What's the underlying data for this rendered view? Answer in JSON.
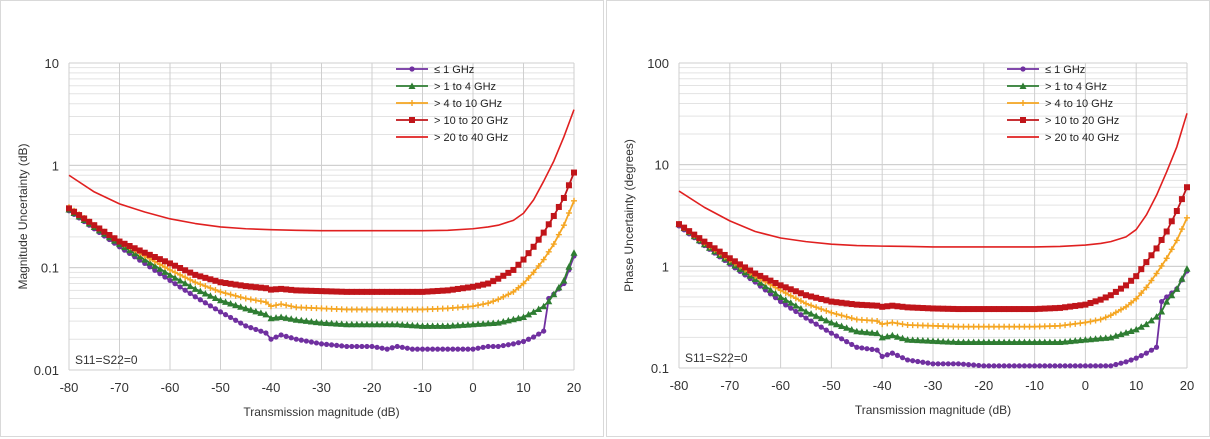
{
  "chart_data": [
    {
      "type": "line",
      "ylog": true,
      "xlabel": "Transmission magnitude (dB)",
      "ylabel": "Magnitude Uncertainty (dB)",
      "note": "S11=S22=0",
      "xlim": [
        -80,
        20
      ],
      "ylim": [
        0.01,
        10
      ],
      "xticks": [
        -80,
        -70,
        -60,
        -50,
        -40,
        -30,
        -20,
        -10,
        0,
        10,
        20
      ],
      "yticks": [
        0.01,
        0.1,
        1,
        10
      ],
      "ytick_labels": [
        "0.01",
        "0.1",
        "1",
        "10"
      ],
      "grid": true,
      "legend_position": "top-right",
      "series": [
        {
          "name": "≤ 1 GHz",
          "color": "#7030a0",
          "marker": "circle",
          "x": [
            -80,
            -75,
            -70,
            -65,
            -60,
            -55,
            -50,
            -45,
            -41,
            -40,
            -38,
            -35,
            -30,
            -25,
            -20,
            -17,
            -15,
            -12,
            -10,
            -7,
            -5,
            0,
            3,
            5,
            8,
            10,
            12,
            14,
            15,
            16,
            18,
            20
          ],
          "y": [
            0.36,
            0.24,
            0.16,
            0.11,
            0.075,
            0.052,
            0.037,
            0.027,
            0.023,
            0.02,
            0.022,
            0.02,
            0.018,
            0.017,
            0.017,
            0.016,
            0.017,
            0.016,
            0.016,
            0.016,
            0.016,
            0.016,
            0.017,
            0.017,
            0.018,
            0.019,
            0.021,
            0.024,
            0.05,
            0.055,
            0.07,
            0.13
          ]
        },
        {
          "name": "> 1 to 4 GHz",
          "color": "#2e7d32",
          "marker": "triangle",
          "x": [
            -80,
            -75,
            -70,
            -65,
            -60,
            -55,
            -50,
            -45,
            -41,
            -40,
            -38,
            -35,
            -30,
            -25,
            -20,
            -15,
            -10,
            -5,
            0,
            5,
            10,
            12,
            14,
            15,
            16,
            18,
            20
          ],
          "y": [
            0.37,
            0.25,
            0.17,
            0.12,
            0.085,
            0.062,
            0.048,
            0.04,
            0.035,
            0.032,
            0.033,
            0.031,
            0.029,
            0.028,
            0.028,
            0.028,
            0.027,
            0.027,
            0.028,
            0.029,
            0.033,
            0.037,
            0.042,
            0.047,
            0.055,
            0.075,
            0.14
          ]
        },
        {
          "name": "> 4 to 10 GHz",
          "color": "#f5a623",
          "marker": "plus",
          "x": [
            -80,
            -75,
            -70,
            -65,
            -60,
            -55,
            -50,
            -45,
            -41,
            -40,
            -38,
            -35,
            -30,
            -25,
            -20,
            -15,
            -10,
            -5,
            0,
            3,
            5,
            8,
            10,
            12,
            14,
            16,
            18,
            20
          ],
          "y": [
            0.39,
            0.26,
            0.18,
            0.13,
            0.095,
            0.072,
            0.058,
            0.05,
            0.046,
            0.042,
            0.044,
            0.041,
            0.04,
            0.039,
            0.039,
            0.039,
            0.039,
            0.04,
            0.042,
            0.045,
            0.049,
            0.058,
            0.07,
            0.09,
            0.12,
            0.17,
            0.26,
            0.45
          ]
        },
        {
          "name": "> 10 to 20 GHz",
          "color": "#c0151a",
          "marker": "square",
          "x": [
            -80,
            -75,
            -70,
            -65,
            -60,
            -55,
            -50,
            -45,
            -41,
            -40,
            -38,
            -35,
            -30,
            -25,
            -20,
            -15,
            -10,
            -5,
            0,
            3,
            5,
            8,
            10,
            12,
            14,
            16,
            18,
            20
          ],
          "y": [
            0.38,
            0.26,
            0.18,
            0.14,
            0.11,
            0.085,
            0.072,
            0.066,
            0.063,
            0.061,
            0.062,
            0.06,
            0.059,
            0.058,
            0.058,
            0.058,
            0.058,
            0.06,
            0.065,
            0.07,
            0.078,
            0.095,
            0.12,
            0.16,
            0.22,
            0.32,
            0.48,
            0.85
          ]
        },
        {
          "name": "> 20 to 40 GHz",
          "color": "#e02020",
          "marker": "none",
          "x": [
            -80,
            -75,
            -70,
            -65,
            -60,
            -55,
            -50,
            -45,
            -40,
            -35,
            -30,
            -25,
            -20,
            -15,
            -10,
            -5,
            0,
            3,
            5,
            8,
            10,
            12,
            14,
            16,
            18,
            20
          ],
          "y": [
            0.8,
            0.55,
            0.42,
            0.35,
            0.3,
            0.27,
            0.25,
            0.24,
            0.235,
            0.232,
            0.23,
            0.23,
            0.23,
            0.23,
            0.23,
            0.232,
            0.24,
            0.25,
            0.26,
            0.29,
            0.34,
            0.46,
            0.7,
            1.1,
            1.9,
            3.5
          ]
        }
      ]
    },
    {
      "type": "line",
      "ylog": true,
      "xlabel": "Transmission magnitude (dB)",
      "ylabel": "Phase Uncertainty (degrees)",
      "note": "S11=S22=0",
      "xlim": [
        -80,
        20
      ],
      "ylim": [
        0.1,
        100
      ],
      "xticks": [
        -80,
        -70,
        -60,
        -50,
        -40,
        -30,
        -20,
        -10,
        0,
        10,
        20
      ],
      "yticks": [
        0.1,
        1,
        10,
        100
      ],
      "ytick_labels": [
        "0.1",
        "1",
        "10",
        "100"
      ],
      "grid": true,
      "legend_position": "top-right",
      "series": [
        {
          "name": "≤ 1 GHz",
          "color": "#7030a0",
          "marker": "circle",
          "x": [
            -80,
            -75,
            -70,
            -65,
            -60,
            -55,
            -50,
            -45,
            -41,
            -40,
            -38,
            -35,
            -30,
            -25,
            -20,
            -15,
            -10,
            -5,
            0,
            5,
            8,
            10,
            12,
            14,
            15,
            16,
            18,
            20
          ],
          "y": [
            2.5,
            1.6,
            1.05,
            0.7,
            0.45,
            0.31,
            0.22,
            0.16,
            0.15,
            0.13,
            0.14,
            0.12,
            0.11,
            0.11,
            0.105,
            0.105,
            0.105,
            0.105,
            0.105,
            0.105,
            0.115,
            0.125,
            0.14,
            0.16,
            0.45,
            0.5,
            0.6,
            0.9
          ]
        },
        {
          "name": "> 1 to 4 GHz",
          "color": "#2e7d32",
          "marker": "triangle",
          "x": [
            -80,
            -75,
            -70,
            -65,
            -60,
            -55,
            -50,
            -45,
            -41,
            -40,
            -38,
            -35,
            -30,
            -25,
            -20,
            -15,
            -10,
            -5,
            0,
            5,
            10,
            12,
            14,
            15,
            16,
            18,
            20
          ],
          "y": [
            2.6,
            1.65,
            1.1,
            0.75,
            0.5,
            0.36,
            0.28,
            0.23,
            0.22,
            0.2,
            0.21,
            0.19,
            0.185,
            0.18,
            0.18,
            0.18,
            0.18,
            0.18,
            0.19,
            0.2,
            0.24,
            0.27,
            0.32,
            0.36,
            0.45,
            0.6,
            0.95
          ]
        },
        {
          "name": "> 4 to 10 GHz",
          "color": "#f5a623",
          "marker": "plus",
          "x": [
            -80,
            -75,
            -70,
            -65,
            -60,
            -55,
            -50,
            -45,
            -41,
            -40,
            -38,
            -35,
            -30,
            -25,
            -20,
            -15,
            -10,
            -5,
            0,
            3,
            5,
            8,
            10,
            12,
            14,
            16,
            18,
            20
          ],
          "y": [
            2.6,
            1.7,
            1.15,
            0.8,
            0.58,
            0.43,
            0.35,
            0.3,
            0.29,
            0.27,
            0.28,
            0.265,
            0.26,
            0.255,
            0.255,
            0.255,
            0.255,
            0.26,
            0.28,
            0.3,
            0.33,
            0.4,
            0.48,
            0.62,
            0.85,
            1.2,
            1.8,
            3.0
          ]
        },
        {
          "name": "> 10 to 20 GHz",
          "color": "#c0151a",
          "marker": "square",
          "x": [
            -80,
            -75,
            -70,
            -65,
            -60,
            -55,
            -50,
            -45,
            -41,
            -40,
            -38,
            -35,
            -30,
            -25,
            -20,
            -15,
            -10,
            -5,
            0,
            3,
            5,
            8,
            10,
            12,
            14,
            16,
            18,
            20
          ],
          "y": [
            2.6,
            1.75,
            1.2,
            0.85,
            0.65,
            0.52,
            0.45,
            0.42,
            0.41,
            0.4,
            0.41,
            0.395,
            0.385,
            0.38,
            0.38,
            0.38,
            0.38,
            0.39,
            0.42,
            0.47,
            0.52,
            0.65,
            0.8,
            1.1,
            1.5,
            2.2,
            3.5,
            6.0
          ]
        },
        {
          "name": "> 20 to 40 GHz",
          "color": "#e02020",
          "marker": "none",
          "x": [
            -80,
            -75,
            -70,
            -65,
            -60,
            -55,
            -50,
            -45,
            -40,
            -35,
            -30,
            -25,
            -20,
            -15,
            -10,
            -5,
            0,
            3,
            5,
            8,
            10,
            12,
            14,
            16,
            18,
            20
          ],
          "y": [
            5.5,
            3.8,
            2.8,
            2.2,
            1.9,
            1.75,
            1.65,
            1.6,
            1.58,
            1.57,
            1.55,
            1.55,
            1.55,
            1.55,
            1.55,
            1.57,
            1.62,
            1.68,
            1.75,
            1.95,
            2.3,
            3.2,
            5.0,
            8.5,
            15,
            32
          ]
        }
      ]
    }
  ]
}
